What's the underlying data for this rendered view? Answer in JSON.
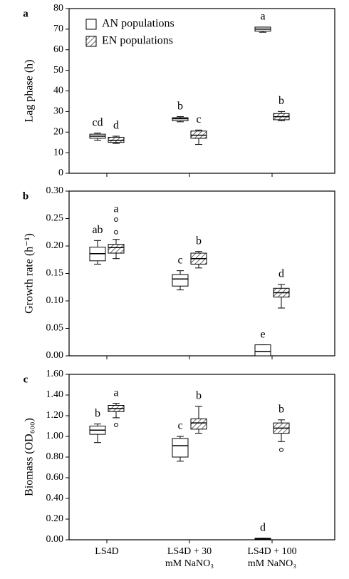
{
  "chart_data": [
    {
      "type": "box",
      "panel": "a",
      "ylabel": "Lag phase (h)",
      "ylim": [
        0,
        80
      ],
      "yticks": [
        0,
        10,
        20,
        30,
        40,
        50,
        60,
        70,
        80
      ],
      "legend": "top-left",
      "series": [
        {
          "name": "AN populations",
          "color": "#ffffff",
          "hatch": false,
          "min": [
            16,
            25,
            68.5
          ],
          "q1": [
            17,
            25.5,
            69
          ],
          "median": [
            18,
            26.5,
            70
          ],
          "q3": [
            19,
            27,
            71
          ],
          "max": [
            19.5,
            27.5,
            71
          ],
          "outliers": [
            [],
            [],
            []
          ],
          "letters": [
            "cd",
            "b",
            "a"
          ]
        },
        {
          "name": "EN populations",
          "color": "#ffffff",
          "hatch": true,
          "min": [
            14.5,
            14,
            25.5
          ],
          "q1": [
            15,
            17,
            26
          ],
          "median": [
            16,
            18.5,
            27.5
          ],
          "q3": [
            17.5,
            20.5,
            29
          ],
          "max": [
            18,
            21,
            30
          ],
          "outliers": [
            [],
            [],
            []
          ],
          "letters": [
            "d",
            "c",
            "b"
          ]
        }
      ]
    },
    {
      "type": "box",
      "panel": "b",
      "ylabel": "Growth rate (h⁻¹)",
      "ylim": [
        0,
        0.3
      ],
      "yticks": [
        {
          "value": 0,
          "label": "0.00"
        },
        {
          "value": 0.05,
          "label": "0.05"
        },
        {
          "value": 0.1,
          "label": "0.10"
        },
        {
          "value": 0.15,
          "label": "0.15"
        },
        {
          "value": 0.2,
          "label": "0.20"
        },
        {
          "value": 0.25,
          "label": "0.25"
        },
        {
          "value": 0.3,
          "label": "0.30"
        }
      ],
      "series": [
        {
          "color": "#ffffff",
          "hatch": false,
          "min": [
            0.167,
            0.12,
            0
          ],
          "q1": [
            0.173,
            0.127,
            0
          ],
          "median": [
            0.186,
            0.14,
            0.008
          ],
          "q3": [
            0.198,
            0.148,
            0.02
          ],
          "max": [
            0.21,
            0.155,
            0.02
          ],
          "outliers": [
            [],
            [],
            []
          ],
          "letters": [
            "ab",
            "c",
            "e"
          ]
        },
        {
          "color": "#ffffff",
          "hatch": true,
          "min": [
            0.177,
            0.16,
            0.087
          ],
          "q1": [
            0.187,
            0.167,
            0.107
          ],
          "median": [
            0.197,
            0.177,
            0.115
          ],
          "q3": [
            0.203,
            0.187,
            0.123
          ],
          "max": [
            0.212,
            0.19,
            0.13
          ],
          "outliers": [
            [
              0.225,
              0.248
            ],
            [],
            []
          ],
          "letters": [
            "a",
            "b",
            "d"
          ]
        }
      ]
    },
    {
      "type": "box",
      "panel": "c",
      "ylabel": "Biomass (OD₆₀₀)",
      "ylim": [
        0,
        1.6
      ],
      "yticks": [
        {
          "value": 0,
          "label": "0.00"
        },
        {
          "value": 0.2,
          "label": "0.20"
        },
        {
          "value": 0.4,
          "label": "0.40"
        },
        {
          "value": 0.6,
          "label": "0.60"
        },
        {
          "value": 0.8,
          "label": "0.80"
        },
        {
          "value": 1,
          "label": "1.00"
        },
        {
          "value": 1.2,
          "label": "1.20"
        },
        {
          "value": 1.4,
          "label": "1.40"
        },
        {
          "value": 1.6,
          "label": "1.60"
        }
      ],
      "categories": [
        "LS4D",
        "LS4D + 30\nmM NaNO₃",
        "LS4D + 100\nmM NaNO₃"
      ],
      "series": [
        {
          "color": "#ffffff",
          "hatch": false,
          "min": [
            0.94,
            0.76,
            0.005
          ],
          "q1": [
            1.02,
            0.8,
            0.005
          ],
          "median": [
            1.06,
            0.91,
            0.01
          ],
          "q3": [
            1.1,
            0.98,
            0.015
          ],
          "max": [
            1.12,
            1,
            0.015
          ],
          "outliers": [
            [],
            [],
            []
          ],
          "letters": [
            "b",
            "c",
            "d"
          ]
        },
        {
          "color": "#ffffff",
          "hatch": true,
          "min": [
            1.18,
            1.03,
            0.95
          ],
          "q1": [
            1.24,
            1.07,
            1.03
          ],
          "median": [
            1.27,
            1.13,
            1.08
          ],
          "q3": [
            1.3,
            1.17,
            1.13
          ],
          "max": [
            1.32,
            1.29,
            1.16
          ],
          "outliers": [
            [
              1.11
            ],
            [],
            [
              0.87
            ]
          ],
          "letters": [
            "a",
            "b",
            "b"
          ]
        }
      ]
    }
  ]
}
